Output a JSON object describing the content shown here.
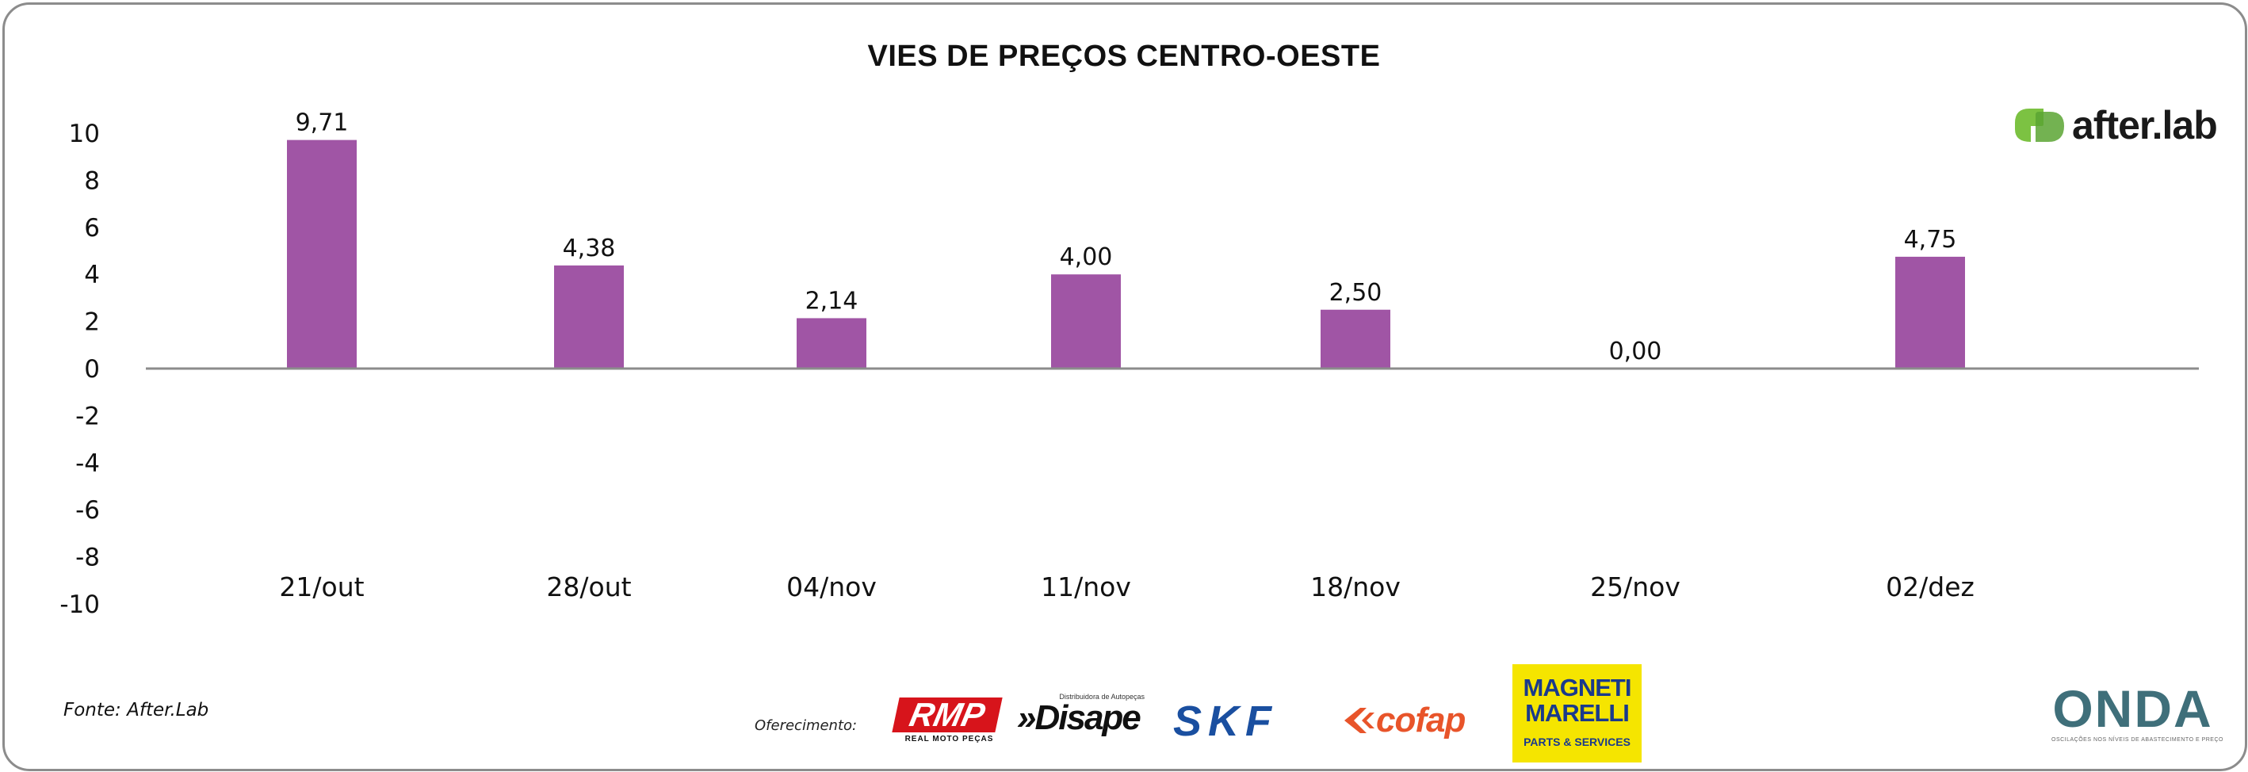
{
  "chart_data": {
    "type": "bar",
    "title": "VIES DE PREÇOS CENTRO-OESTE",
    "xlabel": "",
    "ylabel": "",
    "categories": [
      "21/out",
      "28/out",
      "04/nov",
      "11/nov",
      "18/nov",
      "25/nov",
      "02/dez"
    ],
    "values": [
      9.71,
      4.38,
      2.14,
      4.0,
      2.5,
      0.0,
      4.75
    ],
    "data_labels": [
      "9,71",
      "4,38",
      "2,14",
      "4,00",
      "2,50",
      "0,00",
      "4,75"
    ],
    "yticks": [
      "10",
      "8",
      "6",
      "4",
      "2",
      "0",
      "-2",
      "-4",
      "-6",
      "-8",
      "-10"
    ],
    "ylim": [
      -10,
      10
    ],
    "grid": false,
    "legend": "none",
    "bar_color": "#a055a5",
    "axis_color": "#8c8c8c"
  },
  "logo": {
    "name": "after.lab",
    "text": "after.lab",
    "color": "#7cc242"
  },
  "footer": {
    "source": "Fonte: After.Lab",
    "sponsor_label": "Oferecimento:",
    "sponsors": [
      {
        "name": "RMP",
        "text": "RMP",
        "subtext": "REAL MOTO PEÇAS",
        "color": "#d7141b"
      },
      {
        "name": "Disape",
        "text": "»Disape",
        "subtext": "Distribuidora de Autopeças"
      },
      {
        "name": "SKF",
        "text": "SKF",
        "color": "#1a4fa0"
      },
      {
        "name": "Cofap",
        "text": "cofap",
        "color": "#e8542a"
      },
      {
        "name": "Magneti Marelli",
        "text": "MAGNETI MARELLI",
        "subtext": "PARTS & SERVICES",
        "color": "#f5e500"
      }
    ],
    "onda": {
      "text": "ONDA",
      "subtext": "OSCILAÇÕES NOS NÍVEIS DE ABASTECIMENTO E PREÇO"
    }
  }
}
